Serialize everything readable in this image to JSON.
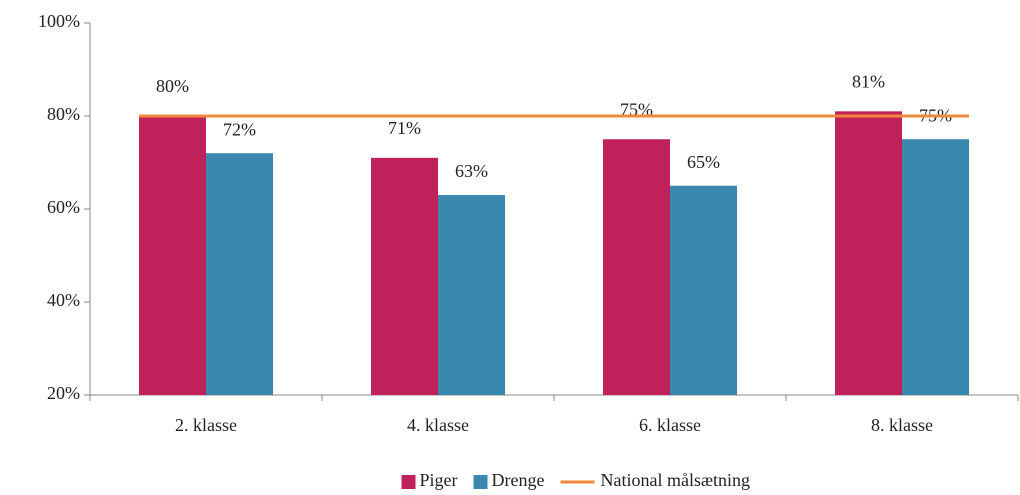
{
  "chart_data": {
    "type": "bar",
    "categories": [
      "2. klasse",
      "4. klasse",
      "6. klasse",
      "8. klasse"
    ],
    "series": [
      {
        "name": "Piger",
        "color": "#c0215a",
        "values": [
          80,
          71,
          75,
          81
        ],
        "value_labels": [
          "80%",
          "71%",
          "75%",
          "81%"
        ]
      },
      {
        "name": "Drenge",
        "color": "#3a87b0",
        "values": [
          72,
          63,
          65,
          75
        ],
        "value_labels": [
          "72%",
          "63%",
          "65%",
          "75%"
        ]
      },
      {
        "name": "National målsætning",
        "type": "line",
        "color": "#f0883a",
        "values": [
          80,
          80,
          80,
          80
        ]
      }
    ],
    "ylim": [
      20,
      100
    ],
    "yticks": [
      {
        "value": 20,
        "label": "20%"
      },
      {
        "value": 40,
        "label": "40%"
      },
      {
        "value": 60,
        "label": "60%"
      },
      {
        "value": 80,
        "label": "80%"
      },
      {
        "value": 100,
        "label": "100%"
      }
    ],
    "grid": false,
    "legend": "bottom"
  }
}
